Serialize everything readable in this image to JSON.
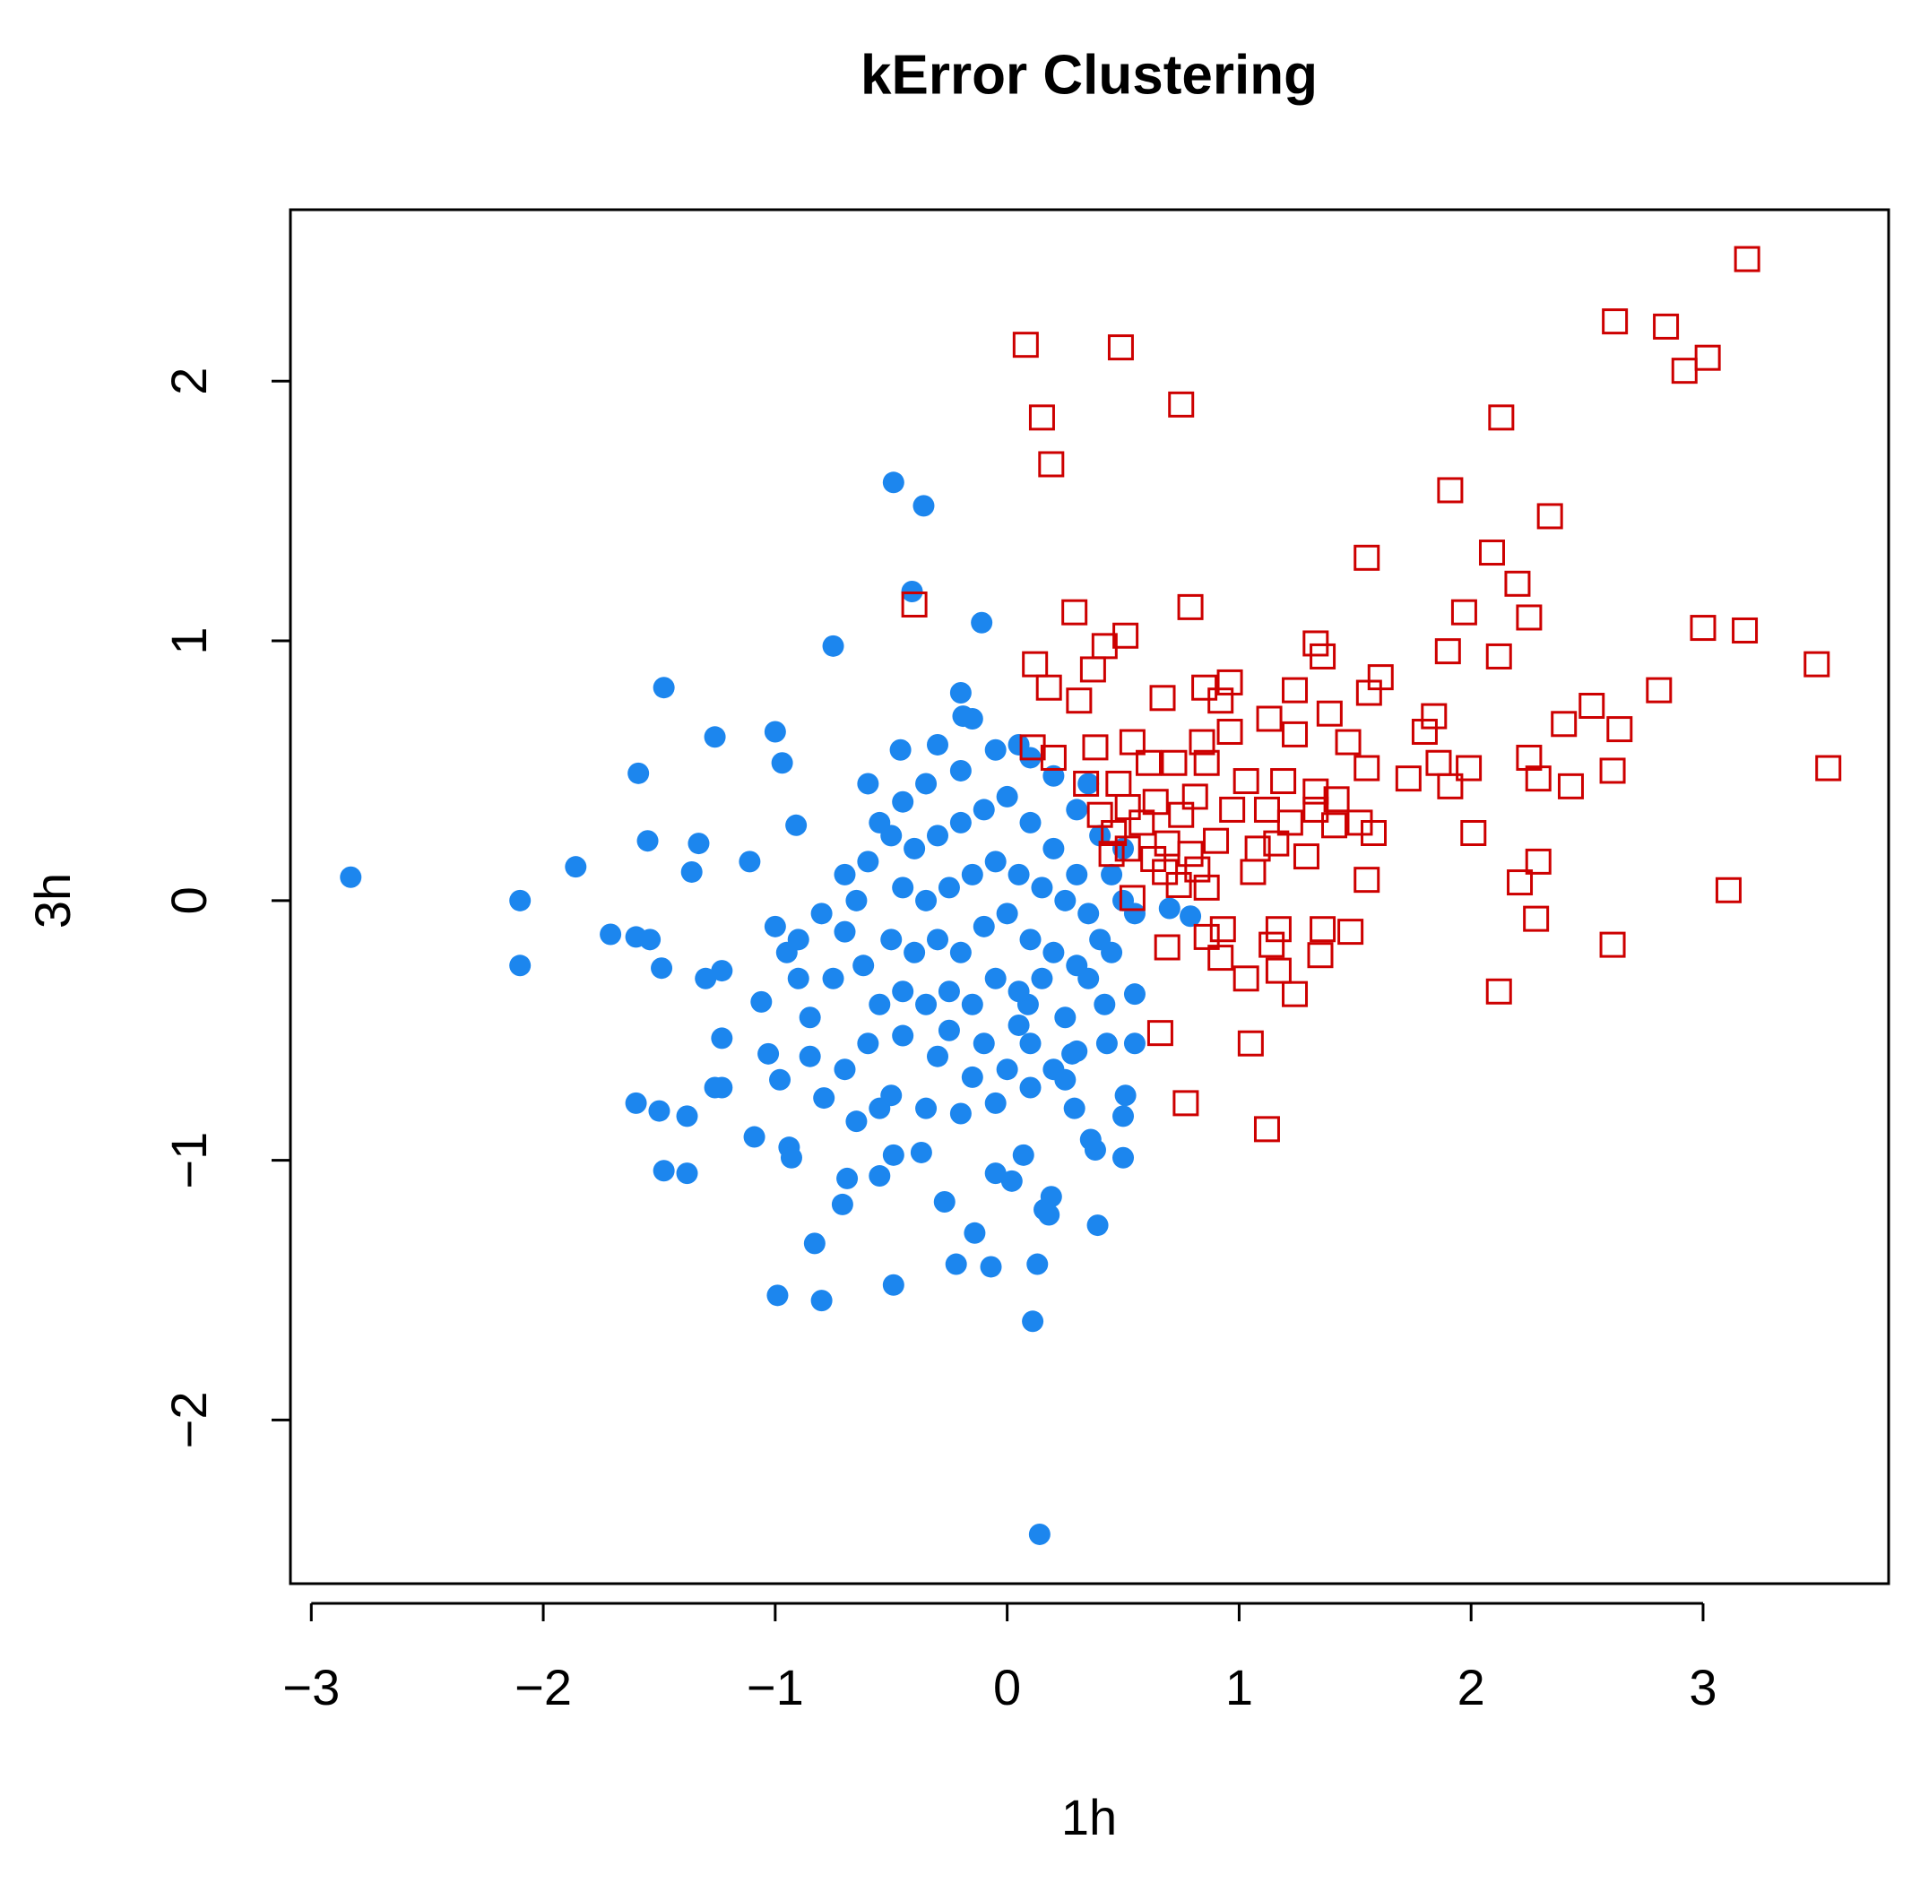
{
  "chart_data": {
    "type": "scatter",
    "title": "kError Clustering",
    "x_label": "1h",
    "y_label": "3h",
    "xlim": [
      -3.09,
      3.8
    ],
    "ylim": [
      -2.63,
      2.66
    ],
    "xticks": [
      {
        "value": -3,
        "label": "−3"
      },
      {
        "value": -2,
        "label": "−2"
      },
      {
        "value": -1,
        "label": "−1"
      },
      0,
      1,
      2,
      3
    ],
    "yticks": [
      {
        "value": -2,
        "label": "−2"
      },
      {
        "value": -1,
        "label": "−1"
      },
      0,
      1,
      2
    ],
    "grid": false,
    "series": [
      {
        "color": "#1c86ee",
        "marker": "circle",
        "x": [
          -2.83,
          -2.1,
          -2.1,
          -1.86,
          -1.71,
          -1.6,
          -1.54,
          -1.49,
          -1.6,
          -1.5,
          -1.38,
          -1.48,
          -1.38,
          -1.48,
          -1.59,
          -1.55,
          -1.33,
          -1.36,
          -1.26,
          -1.3,
          -1.23,
          -1.23,
          -1.26,
          -1.23,
          -1.11,
          -1.09,
          -1.0,
          -0.97,
          -0.91,
          -1.06,
          -1.03,
          -0.98,
          -0.94,
          -0.93,
          -0.99,
          -0.83,
          -0.8,
          -0.79,
          -0.71,
          -0.69,
          -0.75,
          -0.49,
          -0.36,
          -0.41,
          -0.11,
          -0.46,
          -0.2,
          -0.19,
          -0.49,
          -0.55,
          -0.49,
          -0.37,
          -0.27,
          -0.22,
          -0.14,
          -0.07,
          -0.05,
          0.02,
          0.07,
          0.11,
          0.13,
          0.14,
          0.16,
          0.19,
          0.18,
          0.39,
          0.38,
          0.5,
          0.51,
          0.5,
          0.29,
          0.36,
          0.43,
          0.55,
          0.55,
          0.09,
          0.28,
          0.25,
          0.7,
          0.79,
          -0.55,
          -0.45,
          -0.35,
          -0.2,
          -0.05,
          0.1,
          0.2,
          0.3,
          0.4,
          0.45,
          0.5,
          -0.6,
          -0.65,
          -0.7,
          -0.62,
          -0.55,
          -0.45,
          -0.3,
          -0.15,
          0.0,
          0.1,
          0.25,
          0.35,
          0.4,
          -0.4,
          -0.3,
          -0.2,
          -0.1,
          0.0,
          0.1,
          0.2,
          0.3,
          -0.45,
          -0.35,
          -0.25,
          -0.15,
          -0.05,
          0.05,
          0.15,
          0.25,
          0.35,
          -0.5,
          -0.4,
          -0.3,
          -0.2,
          -0.1,
          0.0,
          0.1,
          0.2,
          0.3,
          -0.45,
          -0.35,
          -0.25,
          -0.15,
          -0.05,
          0.05,
          0.15,
          -0.25,
          -0.1,
          0.05,
          -0.8,
          -0.75,
          -0.85,
          -0.9,
          -0.95,
          -0.6,
          -0.5,
          -0.35,
          -0.2,
          -0.05,
          0.1,
          0.2,
          0.3,
          0.42,
          -0.3,
          -0.15,
          0.05,
          0.35,
          0.5,
          -0.7,
          -0.6,
          -0.5,
          0.45,
          -0.85,
          -0.7,
          -0.55,
          -0.65,
          -1.0,
          -0.9,
          0.55
        ],
        "values": [
          0.09,
          0.0,
          -0.25,
          0.13,
          -0.13,
          -0.14,
          -0.15,
          -0.26,
          -0.78,
          -0.81,
          -0.83,
          -1.04,
          -1.05,
          0.82,
          0.49,
          0.23,
          0.22,
          0.11,
          0.63,
          -0.3,
          -0.27,
          -0.53,
          -0.72,
          -0.72,
          0.15,
          -0.91,
          0.65,
          0.53,
          0.29,
          -0.39,
          -0.59,
          -0.69,
          -0.95,
          -0.99,
          -1.52,
          -1.32,
          -1.54,
          -0.76,
          -1.17,
          -1.07,
          0.98,
          1.61,
          1.52,
          1.19,
          1.07,
          0.58,
          0.8,
          0.71,
          -1.48,
          -1.06,
          -0.98,
          -0.97,
          -1.16,
          -1.4,
          -1.28,
          -1.41,
          -1.05,
          -1.08,
          -0.98,
          -1.62,
          -1.4,
          -2.44,
          -1.19,
          -1.14,
          -1.21,
          -1.25,
          -0.96,
          -0.99,
          -0.75,
          -0.83,
          -0.8,
          -0.92,
          -0.55,
          -0.55,
          -0.36,
          -0.4,
          -0.59,
          -0.69,
          -0.03,
          -0.06,
          0.3,
          0.38,
          0.45,
          0.5,
          0.58,
          0.55,
          0.48,
          0.35,
          0.25,
          0.1,
          0.0,
          0.15,
          0.0,
          -0.12,
          -0.25,
          -0.4,
          -0.52,
          -0.6,
          -0.68,
          -0.65,
          -0.55,
          -0.45,
          -0.3,
          -0.15,
          0.2,
          0.25,
          0.3,
          0.35,
          0.4,
          0.3,
          0.2,
          0.1,
          0.05,
          0.0,
          0.05,
          0.1,
          0.15,
          0.1,
          0.05,
          0.0,
          -0.05,
          -0.15,
          -0.2,
          -0.15,
          -0.2,
          -0.1,
          -0.05,
          -0.15,
          -0.2,
          -0.25,
          -0.35,
          -0.4,
          -0.35,
          -0.4,
          -0.3,
          -0.35,
          -0.3,
          -0.5,
          -0.55,
          -0.48,
          -0.05,
          -0.3,
          -0.45,
          -0.15,
          -0.2,
          -0.55,
          -0.75,
          -0.8,
          -0.82,
          -0.78,
          -0.72,
          -0.65,
          -0.58,
          -0.4,
          0.6,
          0.7,
          0.6,
          0.45,
          0.2,
          0.1,
          0.45,
          0.25,
          -0.2,
          -0.6,
          -0.65,
          -0.8,
          -0.85,
          -0.1,
          -0.3,
          -0.05
        ]
      },
      {
        "color": "#cd0000",
        "marker": "square",
        "x": [
          3.19,
          2.62,
          2.84,
          3.02,
          2.92,
          0.08,
          0.49,
          0.15,
          0.75,
          0.19,
          2.13,
          1.91,
          2.34,
          1.55,
          2.09,
          2.2,
          -0.4,
          0.29,
          0.79,
          1.97,
          2.25,
          0.51,
          0.42,
          1.33,
          1.36,
          1.9,
          2.12,
          3.0,
          3.18,
          3.49,
          3.54,
          0.12,
          0.37,
          0.18,
          0.85,
          0.96,
          1.24,
          1.61,
          1.56,
          2.81,
          0.31,
          0.67,
          0.92,
          1.39,
          1.84,
          2.52,
          2.4,
          2.64,
          1.8,
          1.24,
          1.13,
          0.96,
          0.11,
          0.38,
          0.54,
          0.84,
          1.47,
          2.25,
          2.61,
          1.99,
          1.55,
          1.86,
          0.2,
          0.61,
          0.72,
          0.86,
          1.73,
          1.91,
          2.29,
          2.43,
          0.34,
          0.48,
          1.03,
          1.19,
          1.33,
          1.42,
          1.12,
          0.97,
          0.81,
          0.64,
          0.52,
          0.4,
          1.33,
          1.52,
          1.41,
          1.22,
          0.75,
          0.58,
          0.46,
          2.01,
          1.58,
          0.9,
          0.69,
          0.52,
          1.16,
          1.29,
          1.08,
          0.79,
          0.63,
          0.45,
          2.29,
          1.06,
          0.82,
          0.68,
          1.55,
          3.11,
          2.21,
          0.74,
          0.86,
          0.54,
          2.28,
          1.48,
          1.36,
          1.17,
          0.93,
          0.86,
          2.61,
          1.14,
          0.69,
          1.35,
          0.92,
          1.17,
          1.03,
          1.24,
          2.12,
          0.66,
          1.05,
          0.77,
          1.12
        ],
        "values": [
          2.47,
          2.23,
          2.21,
          2.09,
          2.04,
          2.14,
          2.13,
          1.86,
          1.91,
          1.68,
          1.86,
          1.58,
          1.48,
          1.32,
          1.34,
          1.22,
          1.14,
          1.11,
          1.13,
          1.11,
          1.09,
          1.02,
          0.98,
          0.99,
          0.94,
          0.96,
          0.94,
          1.05,
          1.04,
          0.91,
          0.51,
          0.91,
          0.89,
          0.82,
          0.82,
          0.84,
          0.81,
          0.86,
          0.8,
          0.81,
          0.77,
          0.78,
          0.77,
          0.72,
          0.71,
          0.75,
          0.68,
          0.66,
          0.65,
          0.64,
          0.7,
          0.65,
          0.59,
          0.59,
          0.61,
          0.61,
          0.61,
          0.55,
          0.5,
          0.51,
          0.51,
          0.53,
          0.55,
          0.53,
          0.53,
          0.53,
          0.47,
          0.44,
          0.47,
          0.44,
          0.45,
          0.45,
          0.46,
          0.46,
          0.42,
          0.39,
          0.35,
          0.35,
          0.4,
          0.38,
          0.36,
          0.33,
          0.35,
          0.3,
          0.29,
          0.3,
          0.33,
          0.3,
          0.26,
          0.26,
          0.26,
          0.23,
          0.22,
          0.2,
          0.22,
          0.17,
          0.2,
          0.18,
          0.16,
          0.18,
          0.15,
          0.11,
          0.12,
          0.11,
          0.08,
          0.04,
          0.07,
          0.06,
          0.05,
          0.01,
          -0.07,
          -0.12,
          -0.11,
          -0.11,
          -0.11,
          -0.14,
          -0.17,
          -0.17,
          -0.18,
          -0.21,
          -0.22,
          -0.27,
          -0.3,
          -0.36,
          -0.35,
          -0.51,
          -0.55,
          -0.78,
          -0.88
        ]
      }
    ]
  }
}
